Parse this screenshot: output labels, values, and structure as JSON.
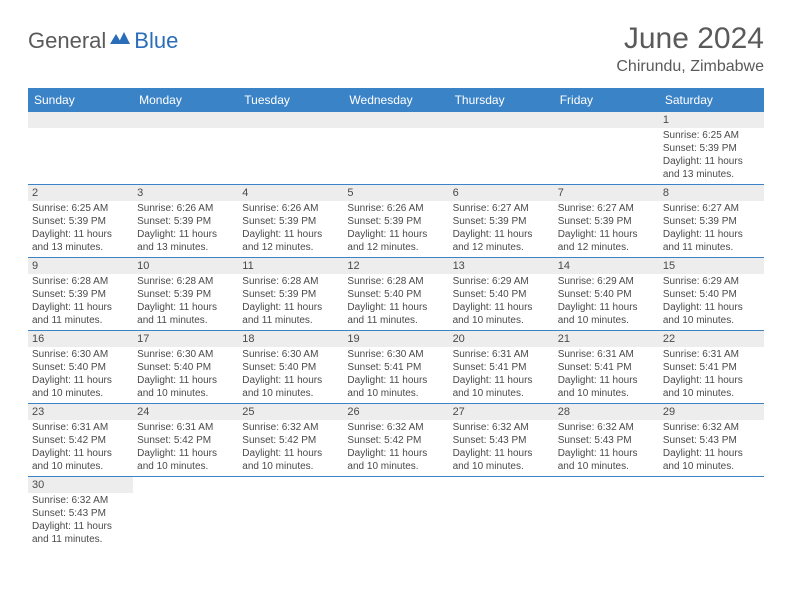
{
  "brand": {
    "part1": "General",
    "part2": "Blue"
  },
  "title": {
    "month": "June 2024",
    "location": "Chirundu, Zimbabwe"
  },
  "colors": {
    "header_bg": "#3b83c7",
    "header_text": "#ffffff",
    "daynum_bg": "#ededed",
    "border": "#3b83c7",
    "text": "#4a4a4a",
    "brand_gray": "#5a5a5a",
    "brand_blue": "#2a6db8"
  },
  "day_labels": [
    "Sunday",
    "Monday",
    "Tuesday",
    "Wednesday",
    "Thursday",
    "Friday",
    "Saturday"
  ],
  "weeks": [
    [
      {
        "n": "",
        "sr": "",
        "ss": "",
        "dl": ""
      },
      {
        "n": "",
        "sr": "",
        "ss": "",
        "dl": ""
      },
      {
        "n": "",
        "sr": "",
        "ss": "",
        "dl": ""
      },
      {
        "n": "",
        "sr": "",
        "ss": "",
        "dl": ""
      },
      {
        "n": "",
        "sr": "",
        "ss": "",
        "dl": ""
      },
      {
        "n": "",
        "sr": "",
        "ss": "",
        "dl": ""
      },
      {
        "n": "1",
        "sr": "Sunrise: 6:25 AM",
        "ss": "Sunset: 5:39 PM",
        "dl": "Daylight: 11 hours and 13 minutes."
      }
    ],
    [
      {
        "n": "2",
        "sr": "Sunrise: 6:25 AM",
        "ss": "Sunset: 5:39 PM",
        "dl": "Daylight: 11 hours and 13 minutes."
      },
      {
        "n": "3",
        "sr": "Sunrise: 6:26 AM",
        "ss": "Sunset: 5:39 PM",
        "dl": "Daylight: 11 hours and 13 minutes."
      },
      {
        "n": "4",
        "sr": "Sunrise: 6:26 AM",
        "ss": "Sunset: 5:39 PM",
        "dl": "Daylight: 11 hours and 12 minutes."
      },
      {
        "n": "5",
        "sr": "Sunrise: 6:26 AM",
        "ss": "Sunset: 5:39 PM",
        "dl": "Daylight: 11 hours and 12 minutes."
      },
      {
        "n": "6",
        "sr": "Sunrise: 6:27 AM",
        "ss": "Sunset: 5:39 PM",
        "dl": "Daylight: 11 hours and 12 minutes."
      },
      {
        "n": "7",
        "sr": "Sunrise: 6:27 AM",
        "ss": "Sunset: 5:39 PM",
        "dl": "Daylight: 11 hours and 12 minutes."
      },
      {
        "n": "8",
        "sr": "Sunrise: 6:27 AM",
        "ss": "Sunset: 5:39 PM",
        "dl": "Daylight: 11 hours and 11 minutes."
      }
    ],
    [
      {
        "n": "9",
        "sr": "Sunrise: 6:28 AM",
        "ss": "Sunset: 5:39 PM",
        "dl": "Daylight: 11 hours and 11 minutes."
      },
      {
        "n": "10",
        "sr": "Sunrise: 6:28 AM",
        "ss": "Sunset: 5:39 PM",
        "dl": "Daylight: 11 hours and 11 minutes."
      },
      {
        "n": "11",
        "sr": "Sunrise: 6:28 AM",
        "ss": "Sunset: 5:39 PM",
        "dl": "Daylight: 11 hours and 11 minutes."
      },
      {
        "n": "12",
        "sr": "Sunrise: 6:28 AM",
        "ss": "Sunset: 5:40 PM",
        "dl": "Daylight: 11 hours and 11 minutes."
      },
      {
        "n": "13",
        "sr": "Sunrise: 6:29 AM",
        "ss": "Sunset: 5:40 PM",
        "dl": "Daylight: 11 hours and 10 minutes."
      },
      {
        "n": "14",
        "sr": "Sunrise: 6:29 AM",
        "ss": "Sunset: 5:40 PM",
        "dl": "Daylight: 11 hours and 10 minutes."
      },
      {
        "n": "15",
        "sr": "Sunrise: 6:29 AM",
        "ss": "Sunset: 5:40 PM",
        "dl": "Daylight: 11 hours and 10 minutes."
      }
    ],
    [
      {
        "n": "16",
        "sr": "Sunrise: 6:30 AM",
        "ss": "Sunset: 5:40 PM",
        "dl": "Daylight: 11 hours and 10 minutes."
      },
      {
        "n": "17",
        "sr": "Sunrise: 6:30 AM",
        "ss": "Sunset: 5:40 PM",
        "dl": "Daylight: 11 hours and 10 minutes."
      },
      {
        "n": "18",
        "sr": "Sunrise: 6:30 AM",
        "ss": "Sunset: 5:40 PM",
        "dl": "Daylight: 11 hours and 10 minutes."
      },
      {
        "n": "19",
        "sr": "Sunrise: 6:30 AM",
        "ss": "Sunset: 5:41 PM",
        "dl": "Daylight: 11 hours and 10 minutes."
      },
      {
        "n": "20",
        "sr": "Sunrise: 6:31 AM",
        "ss": "Sunset: 5:41 PM",
        "dl": "Daylight: 11 hours and 10 minutes."
      },
      {
        "n": "21",
        "sr": "Sunrise: 6:31 AM",
        "ss": "Sunset: 5:41 PM",
        "dl": "Daylight: 11 hours and 10 minutes."
      },
      {
        "n": "22",
        "sr": "Sunrise: 6:31 AM",
        "ss": "Sunset: 5:41 PM",
        "dl": "Daylight: 11 hours and 10 minutes."
      }
    ],
    [
      {
        "n": "23",
        "sr": "Sunrise: 6:31 AM",
        "ss": "Sunset: 5:42 PM",
        "dl": "Daylight: 11 hours and 10 minutes."
      },
      {
        "n": "24",
        "sr": "Sunrise: 6:31 AM",
        "ss": "Sunset: 5:42 PM",
        "dl": "Daylight: 11 hours and 10 minutes."
      },
      {
        "n": "25",
        "sr": "Sunrise: 6:32 AM",
        "ss": "Sunset: 5:42 PM",
        "dl": "Daylight: 11 hours and 10 minutes."
      },
      {
        "n": "26",
        "sr": "Sunrise: 6:32 AM",
        "ss": "Sunset: 5:42 PM",
        "dl": "Daylight: 11 hours and 10 minutes."
      },
      {
        "n": "27",
        "sr": "Sunrise: 6:32 AM",
        "ss": "Sunset: 5:43 PM",
        "dl": "Daylight: 11 hours and 10 minutes."
      },
      {
        "n": "28",
        "sr": "Sunrise: 6:32 AM",
        "ss": "Sunset: 5:43 PM",
        "dl": "Daylight: 11 hours and 10 minutes."
      },
      {
        "n": "29",
        "sr": "Sunrise: 6:32 AM",
        "ss": "Sunset: 5:43 PM",
        "dl": "Daylight: 11 hours and 10 minutes."
      }
    ],
    [
      {
        "n": "30",
        "sr": "Sunrise: 6:32 AM",
        "ss": "Sunset: 5:43 PM",
        "dl": "Daylight: 11 hours and 11 minutes."
      },
      {
        "n": "",
        "sr": "",
        "ss": "",
        "dl": ""
      },
      {
        "n": "",
        "sr": "",
        "ss": "",
        "dl": ""
      },
      {
        "n": "",
        "sr": "",
        "ss": "",
        "dl": ""
      },
      {
        "n": "",
        "sr": "",
        "ss": "",
        "dl": ""
      },
      {
        "n": "",
        "sr": "",
        "ss": "",
        "dl": ""
      },
      {
        "n": "",
        "sr": "",
        "ss": "",
        "dl": ""
      }
    ]
  ]
}
